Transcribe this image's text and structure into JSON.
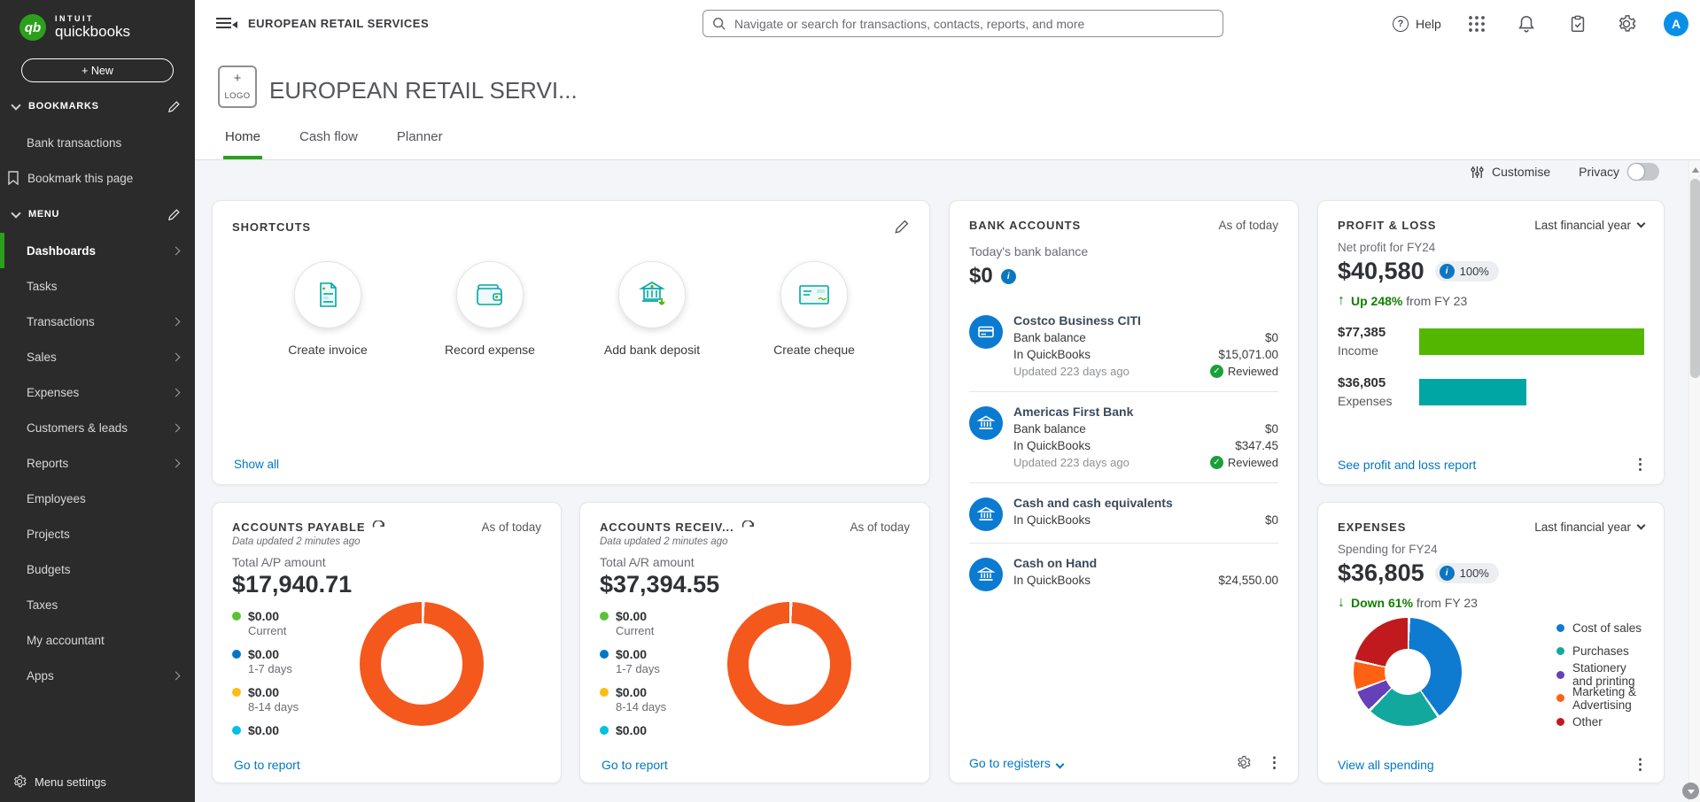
{
  "brand": {
    "intuit": "INTUIT",
    "product": "quickbooks",
    "new_button": "+  New"
  },
  "topbar": {
    "company": "EUROPEAN RETAIL SERVICES",
    "search_placeholder": "Navigate or search for transactions, contacts, reports, and more",
    "help_label": "Help",
    "avatar_initial": "A"
  },
  "sidebar": {
    "bookmarks_label": "BOOKMARKS",
    "bookmark_item": "Bank transactions",
    "bookmark_this": "Bookmark this page",
    "menu_label": "MENU",
    "items": [
      {
        "label": "Dashboards"
      },
      {
        "label": "Tasks"
      },
      {
        "label": "Transactions"
      },
      {
        "label": "Sales"
      },
      {
        "label": "Expenses"
      },
      {
        "label": "Customers & leads"
      },
      {
        "label": "Reports"
      },
      {
        "label": "Employees"
      },
      {
        "label": "Projects"
      },
      {
        "label": "Budgets"
      },
      {
        "label": "Taxes"
      },
      {
        "label": "My accountant"
      },
      {
        "label": "Apps"
      }
    ],
    "menu_settings": "Menu settings"
  },
  "page": {
    "logo_plus": "+",
    "logo_label": "LOGO",
    "title": "EUROPEAN RETAIL SERVI...",
    "tabs": [
      {
        "label": "Home"
      },
      {
        "label": "Cash flow"
      },
      {
        "label": "Planner"
      }
    ],
    "customise_label": "Customise",
    "privacy_label": "Privacy"
  },
  "shortcuts": {
    "title": "SHORTCUTS",
    "items": [
      {
        "label": "Create invoice"
      },
      {
        "label": "Record expense"
      },
      {
        "label": "Add bank deposit"
      },
      {
        "label": "Create cheque"
      }
    ],
    "show_all": "Show all"
  },
  "bank_accounts": {
    "title": "BANK ACCOUNTS",
    "as_of": "As of today",
    "balance_label": "Today's bank balance",
    "balance": "$0",
    "accounts": [
      {
        "name": "Costco Business CITI",
        "bank_balance_label": "Bank balance",
        "bank_balance": "$0",
        "in_qb_label": "In QuickBooks",
        "in_qb_value": "$15,071.00",
        "updated": "Updated 223 days ago",
        "reviewed": "Reviewed"
      },
      {
        "name": "Americas First Bank",
        "bank_balance_label": "Bank balance",
        "bank_balance": "$0",
        "in_qb_label": "In QuickBooks",
        "in_qb_value": "$347.45",
        "updated": "Updated 223 days ago",
        "reviewed": "Reviewed"
      },
      {
        "name": "Cash and cash equivalents",
        "in_qb_label": "In QuickBooks",
        "in_qb_value": "$0"
      },
      {
        "name": "Cash on Hand",
        "in_qb_label": "In QuickBooks",
        "in_qb_value": "$24,550.00"
      }
    ],
    "footer_link": "Go to registers"
  },
  "profit_loss": {
    "title": "PROFIT & LOSS",
    "period": "Last financial year",
    "subtitle": "Net profit for FY24",
    "amount": "$40,580",
    "badge": "100%",
    "trend_arrow": "↑",
    "trend_bold": "Up 248%",
    "trend_rest": "from FY 23",
    "bars": {
      "income": {
        "value": "$77,385",
        "label": "Income",
        "pct": 100,
        "color": "#53b700"
      },
      "expenses": {
        "value": "$36,805",
        "label": "Expenses",
        "pct": 47.6,
        "color": "#00a6a4"
      }
    },
    "footer_link": "See profit and loss report"
  },
  "accounts_payable": {
    "title": "ACCOUNTS PAYABLE",
    "as_of": "As of today",
    "updated": "Data updated 2 minutes ago",
    "total_label": "Total A/P amount",
    "total": "$17,940.71",
    "aging": [
      {
        "amount": "$0.00",
        "label": "Current",
        "color": "#5bc236"
      },
      {
        "amount": "$0.00",
        "label": "1-7 days",
        "color": "#0077c5"
      },
      {
        "amount": "$0.00",
        "label": "8-14 days",
        "color": "#ffbb12"
      },
      {
        "amount": "$0.00",
        "label": "",
        "color": "#00c1de"
      }
    ],
    "donut": [
      {
        "color": "#f4581c",
        "pct": 100
      }
    ],
    "footer_link": "Go to report"
  },
  "accounts_receivable": {
    "title": "ACCOUNTS RECEIV...",
    "as_of": "As of today",
    "updated": "Data updated 2 minutes ago",
    "total_label": "Total A/R amount",
    "total": "$37,394.55",
    "aging": [
      {
        "amount": "$0.00",
        "label": "Current",
        "color": "#5bc236"
      },
      {
        "amount": "$0.00",
        "label": "1-7 days",
        "color": "#0077c5"
      },
      {
        "amount": "$0.00",
        "label": "8-14 days",
        "color": "#ffbb12"
      },
      {
        "amount": "$0.00",
        "label": "",
        "color": "#00c1de"
      }
    ],
    "donut": [
      {
        "color": "#f4581c",
        "pct": 100
      }
    ],
    "footer_link": "Go to report"
  },
  "expenses_card": {
    "title": "EXPENSES",
    "period": "Last financial year",
    "subtitle": "Spending for FY24",
    "amount": "$36,805",
    "badge": "100%",
    "trend_arrow": "↓",
    "trend_bold": "Down 61%",
    "trend_rest": "from FY 23",
    "legend": [
      {
        "label": "Cost of sales",
        "color": "#0f7bd0"
      },
      {
        "label": "Purchases",
        "color": "#13a89e"
      },
      {
        "label": "Stationery and printing",
        "color": "#6640b8"
      },
      {
        "label": "Marketing & Advertising",
        "color": "#fe6111"
      },
      {
        "label": "Other",
        "color": "#c11a1e"
      }
    ],
    "donut": [
      {
        "color": "#0f7bd0",
        "pct": 40
      },
      {
        "color": "#13a89e",
        "pct": 22
      },
      {
        "color": "#6640b8",
        "pct": 7
      },
      {
        "color": "#fe6111",
        "pct": 9
      },
      {
        "color": "#c11a1e",
        "pct": 22
      }
    ],
    "footer_link": "View all spending"
  }
}
